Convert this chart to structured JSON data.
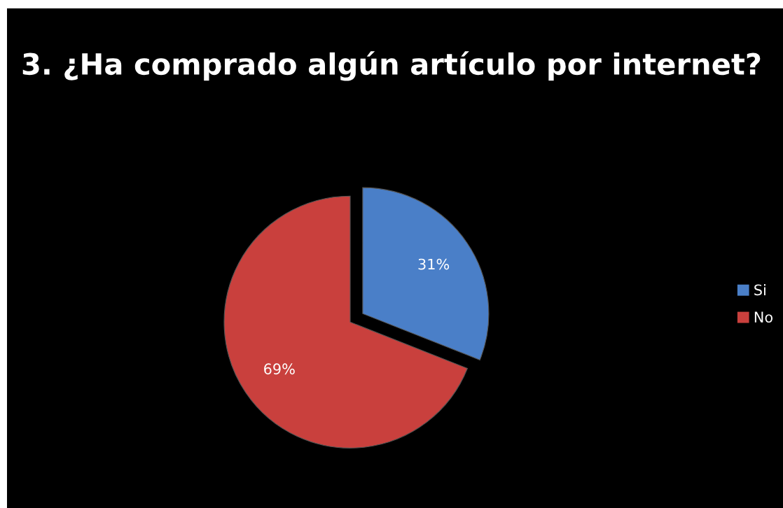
{
  "chart_data": {
    "type": "pie",
    "title": "3. ¿Ha comprado algún artículo por internet?",
    "categories": [
      "Si",
      "No"
    ],
    "values": [
      31,
      69
    ],
    "colors": [
      "#4a7fc8",
      "#c9403d"
    ],
    "value_labels": [
      "31%",
      "69%"
    ],
    "legend": "right"
  }
}
